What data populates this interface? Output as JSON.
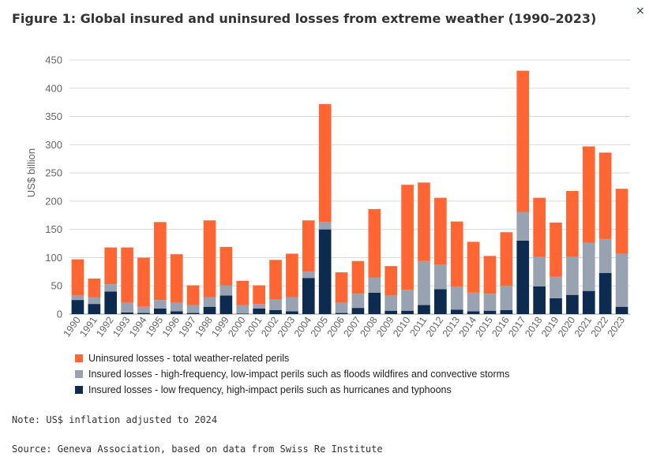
{
  "header": {
    "title": "Figure 1: Global insured and uninsured losses from extreme weather (1990–2023)",
    "close_icon": "×"
  },
  "chart_data": {
    "type": "bar",
    "stacked": true,
    "ylabel": "US$ billion",
    "ylim": [
      0,
      450
    ],
    "yticks": [
      0,
      50,
      100,
      150,
      200,
      250,
      300,
      350,
      400,
      450
    ],
    "grid": true,
    "legend_position": "bottom",
    "categories": [
      "1990",
      "1991",
      "1992",
      "1993",
      "1994",
      "1995",
      "1996",
      "1997",
      "1998",
      "1999",
      "2000",
      "2001",
      "2002",
      "2003",
      "2004",
      "2005",
      "2006",
      "2007",
      "2008",
      "2009",
      "2010",
      "2011",
      "2012",
      "2013",
      "2014",
      "2015",
      "2016",
      "2017",
      "2018",
      "2019",
      "2020",
      "2021",
      "2022",
      "2023"
    ],
    "series": [
      {
        "name": "Insured losses - low frequency, high-impact perils such as hurricanes and typhoons",
        "color": "#0d2a4f",
        "values": [
          25,
          18,
          40,
          3,
          2,
          10,
          5,
          2,
          13,
          33,
          1,
          10,
          7,
          5,
          64,
          150,
          2,
          11,
          38,
          6,
          6,
          16,
          44,
          8,
          5,
          6,
          7,
          130,
          49,
          28,
          34,
          41,
          73,
          13
        ]
      },
      {
        "name": "Insured losses - high-frequency, low-impact perils such as floods wildfires and convective storms",
        "color": "#98a2b0",
        "values": [
          8,
          12,
          13,
          17,
          11,
          15,
          15,
          14,
          17,
          18,
          15,
          8,
          19,
          25,
          11,
          13,
          18,
          25,
          27,
          27,
          37,
          78,
          44,
          41,
          33,
          30,
          43,
          51,
          52,
          38,
          68,
          85,
          60,
          94
        ]
      },
      {
        "name": "Uninsured losses - total weather-related perils",
        "color": "#ff6633",
        "values": [
          64,
          33,
          65,
          98,
          87,
          138,
          86,
          35,
          136,
          68,
          43,
          33,
          70,
          77,
          91,
          209,
          54,
          58,
          121,
          52,
          186,
          139,
          118,
          115,
          90,
          67,
          95,
          250,
          105,
          96,
          116,
          171,
          153,
          115
        ]
      }
    ]
  },
  "legend": {
    "items": [
      {
        "label": "Uninsured losses - total weather-related perils",
        "color": "#ff6633"
      },
      {
        "label": "Insured losses - high-frequency, low-impact perils such as floods wildfires and convective storms",
        "color": "#98a2b0"
      },
      {
        "label": "Insured losses - low frequency, high-impact perils such as hurricanes and typhoons",
        "color": "#0d2a4f"
      }
    ]
  },
  "footer": {
    "note": "Note: US$ inflation adjusted to 2024",
    "source": "Source: Geneva Association, based on data from Swiss Re Institute"
  }
}
